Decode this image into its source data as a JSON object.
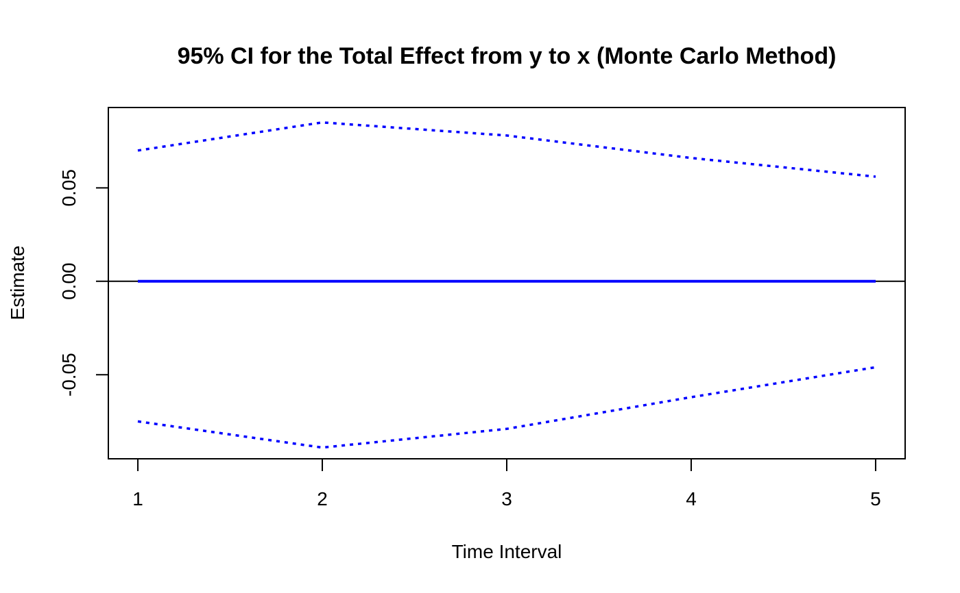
{
  "chart_data": {
    "type": "line",
    "title": "95% CI for the Total Effect from y to x (Monte Carlo Method)",
    "xlabel": "Time Interval",
    "ylabel": "Estimate",
    "x": [
      1,
      2,
      3,
      4,
      5
    ],
    "xlim": [
      0.84,
      5.16
    ],
    "ylim": [
      -0.095,
      0.093
    ],
    "x_ticks": [
      1,
      2,
      3,
      4,
      5
    ],
    "y_ticks": [
      -0.05,
      0.0,
      0.05
    ],
    "x_tick_labels": [
      "1",
      "2",
      "3",
      "4",
      "5"
    ],
    "y_tick_labels": [
      "-0.05",
      "0.00",
      "0.05"
    ],
    "grid": false,
    "legend": "none",
    "reference_line": {
      "y": 0,
      "color": "#000000"
    },
    "series": [
      {
        "role": "upper",
        "style": "dotted",
        "color": "#0000ff",
        "values": [
          0.07,
          0.085,
          0.078,
          0.066,
          0.056
        ]
      },
      {
        "role": "estimate",
        "style": "solid",
        "color": "#0000ff",
        "values": [
          0.0,
          0.0,
          0.0,
          0.0,
          0.0
        ]
      },
      {
        "role": "lower",
        "style": "dotted",
        "color": "#0000ff",
        "values": [
          -0.075,
          -0.089,
          -0.079,
          -0.062,
          -0.046
        ]
      }
    ]
  }
}
